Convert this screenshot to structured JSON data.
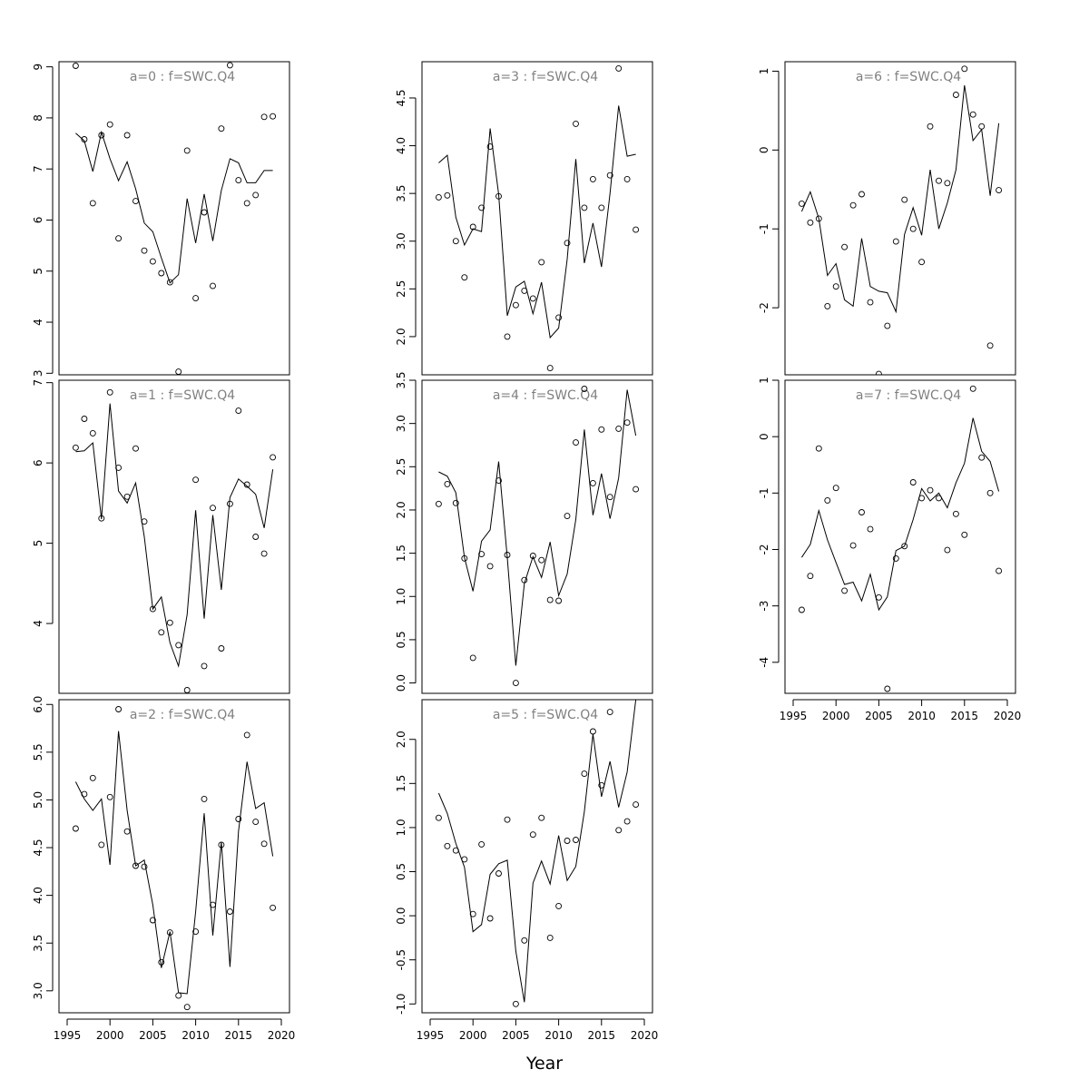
{
  "figure": {
    "xlabel": "Year",
    "line_color": "#000000",
    "title_color": "#808080",
    "xlim": [
      1995,
      2020
    ]
  },
  "chart_data": [
    {
      "type": "scatter",
      "title": "a=0  :  f=SWC.Q4",
      "show_x_axis": false,
      "ylim": [
        2.97,
        9.1
      ],
      "yticks": [
        3,
        4,
        5,
        6,
        7,
        8,
        9
      ],
      "x": [
        1996,
        1997,
        1998,
        1999,
        2000,
        2001,
        2002,
        2003,
        2004,
        2005,
        2006,
        2007,
        2008,
        2009,
        2010,
        2011,
        2012,
        2013,
        2014,
        2015,
        2016,
        2017,
        2018,
        2019
      ],
      "series": [
        {
          "type": "points",
          "values": [
            9.02,
            7.58,
            6.33,
            7.66,
            7.87,
            5.64,
            7.66,
            6.37,
            5.4,
            5.19,
            4.96,
            4.78,
            3.03,
            7.36,
            4.47,
            6.15,
            4.71,
            7.79,
            9.03,
            6.78,
            6.33,
            6.49,
            8.02,
            8.03
          ]
        },
        {
          "type": "line",
          "values": [
            7.7,
            7.55,
            6.95,
            7.72,
            7.2,
            6.77,
            7.14,
            6.61,
            5.94,
            5.77,
            5.26,
            4.77,
            4.93,
            6.42,
            5.55,
            6.51,
            5.59,
            6.58,
            7.2,
            7.12,
            6.73,
            6.73,
            6.97,
            6.97
          ]
        }
      ]
    },
    {
      "type": "scatter",
      "title": "a=1  :  f=SWC.Q4",
      "show_x_axis": false,
      "ylim": [
        3.13,
        7.03
      ],
      "yticks": [
        4,
        5,
        6,
        7
      ],
      "x": [
        1996,
        1997,
        1998,
        1999,
        2000,
        2001,
        2002,
        2003,
        2004,
        2005,
        2006,
        2007,
        2008,
        2009,
        2010,
        2011,
        2012,
        2013,
        2014,
        2015,
        2016,
        2017,
        2018,
        2019
      ],
      "series": [
        {
          "type": "points",
          "values": [
            6.19,
            6.55,
            6.37,
            5.31,
            6.88,
            5.94,
            5.58,
            6.18,
            5.27,
            4.18,
            3.89,
            4.01,
            3.73,
            3.17,
            5.79,
            3.47,
            5.44,
            3.69,
            5.49,
            6.65,
            5.73,
            5.08,
            4.87,
            6.07
          ]
        },
        {
          "type": "line",
          "values": [
            6.14,
            6.15,
            6.25,
            5.3,
            6.74,
            5.65,
            5.5,
            5.75,
            5.08,
            4.18,
            4.33,
            3.76,
            3.47,
            4.11,
            5.41,
            4.06,
            5.35,
            4.42,
            5.57,
            5.8,
            5.71,
            5.61,
            5.19,
            5.92
          ]
        }
      ]
    },
    {
      "type": "scatter",
      "title": "a=2  :  f=SWC.Q4",
      "show_x_axis": true,
      "ylim": [
        2.77,
        6.05
      ],
      "yticks": [
        3.0,
        3.5,
        4.0,
        4.5,
        5.0,
        5.5,
        6.0
      ],
      "x": [
        1996,
        1997,
        1998,
        1999,
        2000,
        2001,
        2002,
        2003,
        2004,
        2005,
        2006,
        2007,
        2008,
        2009,
        2010,
        2011,
        2012,
        2013,
        2014,
        2015,
        2016,
        2017,
        2018,
        2019
      ],
      "series": [
        {
          "type": "points",
          "values": [
            4.7,
            5.06,
            5.23,
            4.53,
            5.03,
            5.95,
            4.67,
            4.31,
            4.3,
            3.74,
            3.3,
            3.61,
            2.95,
            2.83,
            3.62,
            5.01,
            3.9,
            4.53,
            3.83,
            4.8,
            5.68,
            4.77,
            4.54,
            3.87
          ]
        },
        {
          "type": "line",
          "values": [
            5.19,
            5.01,
            4.89,
            5.01,
            4.32,
            5.72,
            4.89,
            4.31,
            4.37,
            3.9,
            3.24,
            3.62,
            2.98,
            2.97,
            3.83,
            4.86,
            3.58,
            4.56,
            3.25,
            4.67,
            5.4,
            4.91,
            4.97,
            4.41
          ]
        }
      ]
    },
    {
      "type": "scatter",
      "title": "a=3  :  f=SWC.Q4",
      "show_x_axis": false,
      "ylim": [
        1.6,
        4.88
      ],
      "yticks": [
        2.0,
        2.5,
        3.0,
        3.5,
        4.0,
        4.5
      ],
      "x": [
        1996,
        1997,
        1998,
        1999,
        2000,
        2001,
        2002,
        2003,
        2004,
        2005,
        2006,
        2007,
        2008,
        2009,
        2010,
        2011,
        2012,
        2013,
        2014,
        2015,
        2016,
        2017,
        2018,
        2019
      ],
      "series": [
        {
          "type": "points",
          "values": [
            3.46,
            3.48,
            3.0,
            2.62,
            3.15,
            3.35,
            3.99,
            3.47,
            2.0,
            2.33,
            2.48,
            2.4,
            2.78,
            1.67,
            2.2,
            2.98,
            4.23,
            3.35,
            3.65,
            3.35,
            3.69,
            4.81,
            3.65,
            3.12
          ]
        },
        {
          "type": "line",
          "values": [
            3.82,
            3.9,
            3.25,
            2.96,
            3.13,
            3.1,
            4.18,
            3.49,
            2.22,
            2.52,
            2.58,
            2.24,
            2.57,
            1.99,
            2.09,
            2.81,
            3.86,
            2.77,
            3.19,
            2.73,
            3.5,
            4.42,
            3.89,
            3.91
          ]
        }
      ]
    },
    {
      "type": "scatter",
      "title": "a=4  :  f=SWC.Q4",
      "show_x_axis": false,
      "ylim": [
        -0.12,
        3.5
      ],
      "yticks": [
        0.0,
        0.5,
        1.0,
        1.5,
        2.0,
        2.5,
        3.0,
        3.5
      ],
      "x": [
        1996,
        1997,
        1998,
        1999,
        2000,
        2001,
        2002,
        2003,
        2004,
        2005,
        2006,
        2007,
        2008,
        2009,
        2010,
        2011,
        2012,
        2013,
        2014,
        2015,
        2016,
        2017,
        2018,
        2019
      ],
      "series": [
        {
          "type": "points",
          "values": [
            2.07,
            2.3,
            2.08,
            1.44,
            0.29,
            1.49,
            1.35,
            2.34,
            1.48,
            0.0,
            1.19,
            1.47,
            1.42,
            0.96,
            0.95,
            1.93,
            2.78,
            3.4,
            2.31,
            2.93,
            2.15,
            2.94,
            3.01,
            2.24
          ]
        },
        {
          "type": "line",
          "values": [
            2.44,
            2.39,
            2.2,
            1.45,
            1.06,
            1.64,
            1.77,
            2.56,
            1.45,
            0.2,
            1.15,
            1.46,
            1.22,
            1.63,
            1.01,
            1.26,
            1.89,
            2.93,
            1.94,
            2.42,
            1.9,
            2.37,
            3.39,
            2.86
          ]
        }
      ]
    },
    {
      "type": "scatter",
      "title": "a=5  :  f=SWC.Q4",
      "show_x_axis": true,
      "ylim": [
        -1.1,
        2.45
      ],
      "yticks": [
        -1.0,
        -0.5,
        0.0,
        0.5,
        1.0,
        1.5,
        2.0
      ],
      "x": [
        1996,
        1997,
        1998,
        1999,
        2000,
        2001,
        2002,
        2003,
        2004,
        2005,
        2006,
        2007,
        2008,
        2009,
        2010,
        2011,
        2012,
        2013,
        2014,
        2015,
        2016,
        2017,
        2018,
        2019
      ],
      "series": [
        {
          "type": "points",
          "values": [
            1.11,
            0.79,
            0.74,
            0.64,
            0.02,
            0.81,
            -0.03,
            0.48,
            1.09,
            -1.0,
            -0.28,
            0.92,
            1.11,
            -0.25,
            0.11,
            0.85,
            0.86,
            1.61,
            2.09,
            1.48,
            2.31,
            0.97,
            1.07,
            1.26
          ]
        },
        {
          "type": "line",
          "values": [
            1.39,
            1.16,
            0.82,
            0.55,
            -0.18,
            -0.1,
            0.47,
            0.59,
            0.63,
            -0.4,
            -0.98,
            0.37,
            0.62,
            0.36,
            0.91,
            0.4,
            0.56,
            1.18,
            2.06,
            1.35,
            1.75,
            1.23,
            1.63,
            2.45
          ]
        }
      ]
    },
    {
      "type": "scatter",
      "title": "a=6  :  f=SWC.Q4",
      "show_x_axis": false,
      "ylim": [
        -2.85,
        1.12
      ],
      "yticks": [
        -2,
        -1,
        0,
        1
      ],
      "x": [
        1996,
        1997,
        1998,
        1999,
        2000,
        2001,
        2002,
        2003,
        2004,
        2005,
        2006,
        2007,
        2008,
        2009,
        2010,
        2011,
        2012,
        2013,
        2014,
        2015,
        2016,
        2017,
        2018,
        2019
      ],
      "series": [
        {
          "type": "points",
          "values": [
            -0.68,
            -0.92,
            -0.87,
            -1.98,
            -1.73,
            -1.23,
            -0.7,
            -0.56,
            -1.93,
            -2.84,
            -2.23,
            -1.16,
            -0.63,
            -1.0,
            -1.42,
            0.3,
            -0.39,
            -0.42,
            0.7,
            1.03,
            0.45,
            0.3,
            -2.48,
            -0.51
          ]
        },
        {
          "type": "line",
          "values": [
            -0.78,
            -0.53,
            -0.87,
            -1.59,
            -1.44,
            -1.9,
            -1.98,
            -1.12,
            -1.73,
            -1.79,
            -1.81,
            -2.05,
            -1.07,
            -0.73,
            -1.08,
            -0.25,
            -1.0,
            -0.67,
            -0.25,
            0.82,
            0.12,
            0.26,
            -0.58,
            0.34
          ]
        }
      ]
    },
    {
      "type": "scatter",
      "title": "a=7  :  f=SWC.Q4",
      "show_x_axis": true,
      "ylim": [
        -4.55,
        1.0
      ],
      "yticks": [
        -4,
        -3,
        -2,
        -1,
        0,
        1
      ],
      "x": [
        1996,
        1997,
        1998,
        1999,
        2000,
        2001,
        2002,
        2003,
        2004,
        2005,
        2006,
        2007,
        2008,
        2009,
        2010,
        2011,
        2012,
        2013,
        2014,
        2015,
        2016,
        2017,
        2018,
        2019
      ],
      "series": [
        {
          "type": "points",
          "values": [
            -3.07,
            -2.47,
            -0.21,
            -1.13,
            -0.91,
            -2.73,
            -1.93,
            -1.34,
            -1.64,
            -2.85,
            -4.47,
            -2.16,
            -1.94,
            -0.81,
            -1.09,
            -0.95,
            -1.09,
            -2.01,
            -1.37,
            -1.74,
            0.85,
            -0.37,
            -1.0,
            -2.38
          ]
        },
        {
          "type": "line",
          "values": [
            -2.14,
            -1.91,
            -1.31,
            -1.83,
            -2.23,
            -2.62,
            -2.58,
            -2.91,
            -2.44,
            -3.07,
            -2.84,
            -2.02,
            -1.94,
            -1.47,
            -0.92,
            -1.14,
            -1.0,
            -1.26,
            -0.82,
            -0.47,
            0.33,
            -0.26,
            -0.44,
            -0.97
          ]
        }
      ]
    }
  ]
}
